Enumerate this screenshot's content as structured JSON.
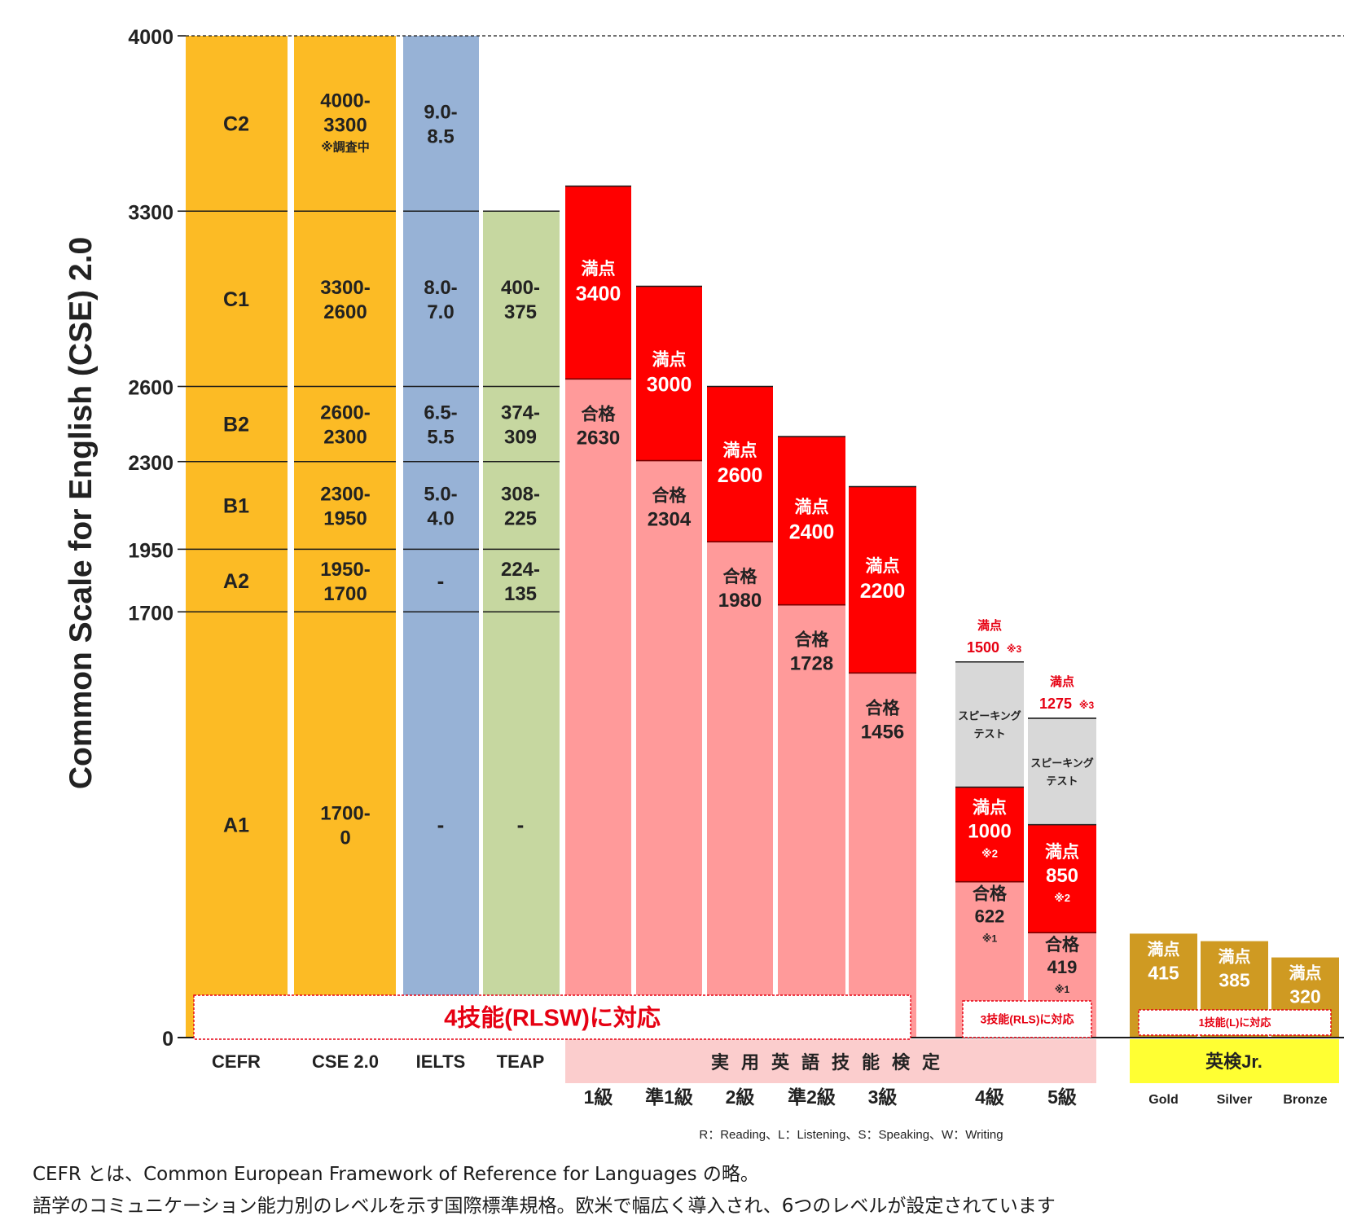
{
  "colors": {
    "cefr": "#fcbb25",
    "cse": "#fcbb25",
    "ielts": "#97b2d6",
    "teap": "#c6d7a0",
    "eiken_full": "#ff0000",
    "eiken_pass": "#ff9a9a",
    "speaking": "#d8d8d8",
    "junior": "#cf9a22",
    "eiken_label_bg": "#fbcdcd",
    "junior_label_bg": "#ffff33",
    "note_red": "#e60012"
  },
  "footnotes": [
    "CEFR とは、Common European Framework of Reference for Languages の略。",
    "語学のコミュニケーション能力別のレベルを示す国際標準規格。欧米で幅広く導入され、6つのレベルが設定されています"
  ],
  "chart_data": {
    "type": "bar",
    "title": "",
    "ylabel": "Common Scale for English (CSE) 2.0",
    "ylim": [
      0,
      4000
    ],
    "y_ticks": [
      0,
      1700,
      1950,
      2300,
      2600,
      3300,
      4000
    ],
    "cefr_levels": [
      {
        "level": "C2",
        "from": 3300,
        "to": 4000,
        "cse": "4000-3300",
        "cse_note": "※調査中",
        "ielts": "9.0-8.5",
        "teap": ""
      },
      {
        "level": "C1",
        "from": 2600,
        "to": 3300,
        "cse": "3300-2600",
        "ielts": "8.0-7.0",
        "teap": "400-375"
      },
      {
        "level": "B2",
        "from": 2300,
        "to": 2600,
        "cse": "2600-2300",
        "ielts": "6.5-5.5",
        "teap": "374-309"
      },
      {
        "level": "B1",
        "from": 1950,
        "to": 2300,
        "cse": "2300-1950",
        "ielts": "5.0-4.0",
        "teap": "308-225"
      },
      {
        "level": "A2",
        "from": 1700,
        "to": 1950,
        "cse": "1950-1700",
        "ielts": "-",
        "teap": "224-135"
      },
      {
        "level": "A1",
        "from": 0,
        "to": 1700,
        "cse": "1700-0",
        "ielts": "-",
        "teap": "-"
      }
    ],
    "column_labels": {
      "cefr": "CEFR",
      "cse": "CSE 2.0",
      "ielts": "IELTS",
      "teap": "TEAP"
    },
    "eiken_group_label": "実用英語技能検定",
    "eiken_four_skills_note": "4技能(RLSW)に対応",
    "eiken_three_skills_note": "3技能(RLS)に対応",
    "eiken": [
      {
        "grade": "1級",
        "full": 3400,
        "pass": 2630
      },
      {
        "grade": "準1級",
        "full": 3000,
        "pass": 2304
      },
      {
        "grade": "2級",
        "full": 2600,
        "pass": 1980
      },
      {
        "grade": "準2級",
        "full": 2400,
        "pass": 1728
      },
      {
        "grade": "3級",
        "full": 2200,
        "pass": 1456
      },
      {
        "grade": "4級",
        "full": 1500,
        "full_note": "※3",
        "rls_full": 1000,
        "rls_full_note": "※2",
        "pass": 622,
        "pass_note": "※1"
      },
      {
        "grade": "5級",
        "full": 1275,
        "full_note": "※3",
        "rls_full": 850,
        "rls_full_note": "※2",
        "pass": 419,
        "pass_note": "※1"
      }
    ],
    "full_label": "満点",
    "pass_label": "合格",
    "speaking_label": [
      "スピーキング",
      "テスト"
    ],
    "junior_group_label": "英検Jr.",
    "junior_note": "1技能(L)に対応",
    "junior": [
      {
        "level": "Gold",
        "full": 415
      },
      {
        "level": "Silver",
        "full": 385
      },
      {
        "level": "Bronze",
        "full": 320
      }
    ],
    "skills_legend": "R：Reading、L：Listening、S：Speaking、W：Writing"
  }
}
